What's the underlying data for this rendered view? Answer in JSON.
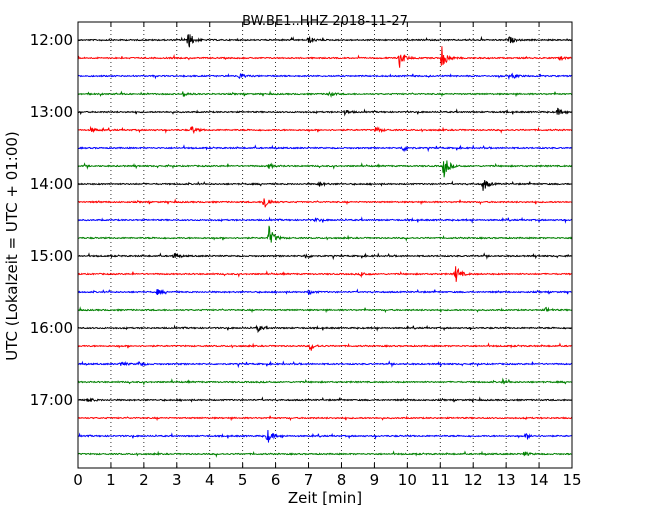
{
  "chart_data": {
    "type": "line",
    "title": "BW.BE1..HHZ 2018-11-27",
    "xlabel": "Zeit  [min]",
    "ylabel": "UTC (Lokalzeit = UTC + 01:00)",
    "xlim": [
      0,
      15
    ],
    "x_ticks": [
      "0",
      "1",
      "2",
      "3",
      "4",
      "5",
      "6",
      "7",
      "8",
      "9",
      "10",
      "11",
      "12",
      "13",
      "14",
      "15"
    ],
    "y_ticks": [
      "12:00",
      "13:00",
      "14:00",
      "15:00",
      "16:00",
      "17:00"
    ],
    "grid": "vertical dotted",
    "colors": [
      "#000000",
      "#ff0000",
      "#0000ff",
      "#008000"
    ],
    "traces": [
      {
        "start": "12:00",
        "events": [
          {
            "t": 3.35,
            "amp": 1.2
          },
          {
            "t": 7.0,
            "amp": 0.5
          },
          {
            "t": 13.1,
            "amp": 0.45
          }
        ]
      },
      {
        "start": "12:15",
        "events": [
          {
            "t": 9.75,
            "amp": 1.4
          },
          {
            "t": 11.05,
            "amp": 1.5
          },
          {
            "t": 14.6,
            "amp": 0.3
          }
        ]
      },
      {
        "start": "12:30",
        "events": [
          {
            "t": 4.9,
            "amp": 0.35
          },
          {
            "t": 13.2,
            "amp": 0.35
          }
        ]
      },
      {
        "start": "12:45",
        "events": [
          {
            "t": 3.2,
            "amp": 0.35
          },
          {
            "t": 7.6,
            "amp": 0.4
          }
        ]
      },
      {
        "start": "13:00",
        "events": [
          {
            "t": 8.1,
            "amp": 0.35
          },
          {
            "t": 14.55,
            "amp": 0.45
          }
        ]
      },
      {
        "start": "13:15",
        "events": [
          {
            "t": 0.4,
            "amp": 0.35
          },
          {
            "t": 3.45,
            "amp": 0.55
          },
          {
            "t": 9.05,
            "amp": 0.45
          }
        ]
      },
      {
        "start": "13:30",
        "events": [
          {
            "t": 9.85,
            "amp": 0.45
          }
        ]
      },
      {
        "start": "13:45",
        "events": [
          {
            "t": 11.1,
            "amp": 1.6
          },
          {
            "t": 5.8,
            "amp": 0.3
          }
        ]
      },
      {
        "start": "14:00",
        "events": [
          {
            "t": 12.3,
            "amp": 0.9
          },
          {
            "t": 7.3,
            "amp": 0.35
          }
        ]
      },
      {
        "start": "14:15",
        "events": [
          {
            "t": 5.65,
            "amp": 1.2
          }
        ]
      },
      {
        "start": "14:30",
        "events": [
          {
            "t": 7.2,
            "amp": 0.25
          }
        ]
      },
      {
        "start": "14:45",
        "events": [
          {
            "t": 5.8,
            "amp": 1.5
          }
        ]
      },
      {
        "start": "15:00",
        "events": [
          {
            "t": 2.9,
            "amp": 0.4
          },
          {
            "t": 6.9,
            "amp": 0.3
          }
        ]
      },
      {
        "start": "15:15",
        "events": [
          {
            "t": 11.45,
            "amp": 1.3
          },
          {
            "t": 8.6,
            "amp": 0.3
          }
        ]
      },
      {
        "start": "15:30",
        "events": [
          {
            "t": 2.4,
            "amp": 0.35
          },
          {
            "t": 7.0,
            "amp": 0.3
          }
        ]
      },
      {
        "start": "15:45",
        "events": [
          {
            "t": 14.2,
            "amp": 0.3
          }
        ]
      },
      {
        "start": "16:00",
        "events": [
          {
            "t": 5.45,
            "amp": 0.45
          }
        ]
      },
      {
        "start": "16:15",
        "events": [
          {
            "t": 7.05,
            "amp": 0.5
          }
        ]
      },
      {
        "start": "16:30",
        "events": [
          {
            "t": 1.3,
            "amp": 0.35
          },
          {
            "t": 1.85,
            "amp": 0.3
          }
        ]
      },
      {
        "start": "16:45",
        "events": [
          {
            "t": 12.9,
            "amp": 0.25
          }
        ]
      },
      {
        "start": "17:00",
        "events": [
          {
            "t": 0.3,
            "amp": 0.35
          }
        ]
      },
      {
        "start": "17:15",
        "events": []
      },
      {
        "start": "17:30",
        "events": [
          {
            "t": 5.75,
            "amp": 1.0
          },
          {
            "t": 13.6,
            "amp": 0.3
          }
        ]
      },
      {
        "start": "17:45",
        "events": [
          {
            "t": 13.55,
            "amp": 0.3
          }
        ]
      }
    ]
  }
}
